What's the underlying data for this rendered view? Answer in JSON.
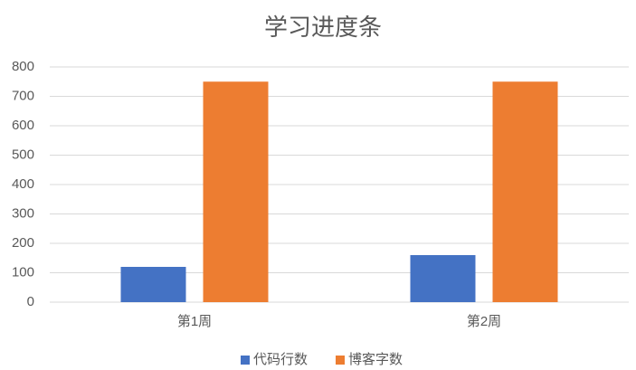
{
  "chart_data": {
    "type": "bar",
    "title": "学习进度条",
    "categories": [
      "第1周",
      "第2周"
    ],
    "series": [
      {
        "name": "代码行数",
        "color": "#4472c4",
        "values": [
          120,
          160
        ]
      },
      {
        "name": "博客字数",
        "color": "#ed7d31",
        "values": [
          750,
          750
        ]
      }
    ],
    "ylim": [
      0,
      800
    ],
    "yticks": [
      0,
      100,
      200,
      300,
      400,
      500,
      600,
      700,
      800
    ],
    "grid": true,
    "legend": "bottom"
  }
}
